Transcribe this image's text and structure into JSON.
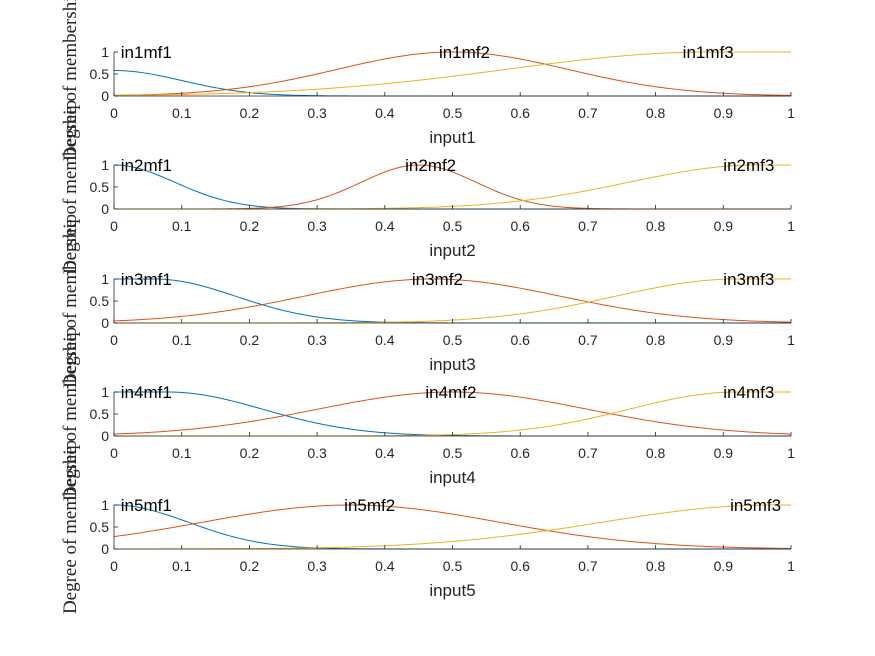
{
  "colors": {
    "mf1": "#0072BD",
    "mf2": "#D95319",
    "mf3": "#EDB120",
    "axis": "#262626"
  },
  "chart_data": [
    {
      "type": "line",
      "xlabel": "input1",
      "ylabel": "Degree of membership",
      "xlim": [
        0,
        1
      ],
      "ylim": [
        0,
        1
      ],
      "xticks": [
        "0",
        "0.1",
        "0.2",
        "0.3",
        "0.4",
        "0.5",
        "0.6",
        "0.7",
        "0.8",
        "0.9",
        "1"
      ],
      "yticks": [
        "0",
        "0.5",
        "1"
      ],
      "series": [
        {
          "name": "in1mf1",
          "shape": "gauss",
          "center": 0.0,
          "sigma": 0.1,
          "amp": 0.58,
          "label_x": 0.01
        },
        {
          "name": "in1mf2",
          "shape": "gauss",
          "center": 0.5,
          "sigma": 0.17,
          "amp": 1.0,
          "label_x": 0.48
        },
        {
          "name": "in1mf3",
          "shape": "gauss",
          "center": 0.88,
          "sigma": 0.3,
          "amp": 1.0,
          "flat_right": true,
          "label_x": 0.84
        }
      ]
    },
    {
      "type": "line",
      "xlabel": "input2",
      "ylabel": "Degree of membership",
      "xlim": [
        0,
        1
      ],
      "ylim": [
        0,
        1
      ],
      "xticks": [
        "0",
        "0.1",
        "0.2",
        "0.3",
        "0.4",
        "0.5",
        "0.6",
        "0.7",
        "0.8",
        "0.9",
        "1"
      ],
      "yticks": [
        "0",
        "0.5",
        "1"
      ],
      "series": [
        {
          "name": "in2mf1",
          "shape": "gauss",
          "center": 0.0,
          "sigma": 0.09,
          "amp": 1.0,
          "label_x": 0.01
        },
        {
          "name": "in2mf2",
          "shape": "gauss",
          "center": 0.45,
          "sigma": 0.085,
          "amp": 1.0,
          "label_x": 0.43
        },
        {
          "name": "in2mf3",
          "shape": "gauss",
          "center": 0.95,
          "sigma": 0.19,
          "amp": 1.0,
          "flat_right": true,
          "label_x": 0.9
        }
      ]
    },
    {
      "type": "line",
      "xlabel": "input3",
      "ylabel": "Degree of membership",
      "xlim": [
        0,
        1
      ],
      "ylim": [
        0,
        1
      ],
      "xticks": [
        "0",
        "0.1",
        "0.2",
        "0.3",
        "0.4",
        "0.5",
        "0.6",
        "0.7",
        "0.8",
        "0.9",
        "1"
      ],
      "yticks": [
        "0",
        "0.5",
        "1"
      ],
      "series": [
        {
          "name": "in3mf1",
          "shape": "gauss",
          "center": 0.06,
          "sigma": 0.12,
          "amp": 1.0,
          "flat_left": true,
          "label_x": 0.01
        },
        {
          "name": "in3mf2",
          "shape": "gauss",
          "center": 0.47,
          "sigma": 0.19,
          "amp": 1.0,
          "label_x": 0.44
        },
        {
          "name": "in3mf3",
          "shape": "gauss",
          "center": 0.92,
          "sigma": 0.18,
          "amp": 1.0,
          "flat_right": true,
          "label_x": 0.9
        }
      ]
    },
    {
      "type": "line",
      "xlabel": "input4",
      "ylabel": "Degree of membership",
      "xlim": [
        0,
        1
      ],
      "ylim": [
        0,
        1
      ],
      "xticks": [
        "0",
        "0.1",
        "0.2",
        "0.3",
        "0.4",
        "0.5",
        "0.6",
        "0.7",
        "0.8",
        "0.9",
        "1"
      ],
      "yticks": [
        "0",
        "0.5",
        "1"
      ],
      "series": [
        {
          "name": "in4mf1",
          "shape": "gauss",
          "center": 0.08,
          "sigma": 0.14,
          "amp": 1.0,
          "flat_left": true,
          "label_x": 0.01
        },
        {
          "name": "in4mf2",
          "shape": "gauss",
          "center": 0.5,
          "sigma": 0.2,
          "amp": 1.0,
          "label_x": 0.46
        },
        {
          "name": "in4mf3",
          "shape": "gauss",
          "center": 0.92,
          "sigma": 0.16,
          "amp": 1.0,
          "flat_right": true,
          "label_x": 0.9
        }
      ]
    },
    {
      "type": "line",
      "xlabel": "input5",
      "ylabel": "Degree of membership",
      "xlim": [
        0,
        1
      ],
      "ylim": [
        0,
        1
      ],
      "xticks": [
        "0",
        "0.1",
        "0.2",
        "0.3",
        "0.4",
        "0.5",
        "0.6",
        "0.7",
        "0.8",
        "0.9",
        "1"
      ],
      "yticks": [
        "0",
        "0.5",
        "1"
      ],
      "series": [
        {
          "name": "in5mf1",
          "shape": "gauss",
          "center": 0.0,
          "sigma": 0.11,
          "amp": 1.0,
          "label_x": 0.01
        },
        {
          "name": "in5mf2",
          "shape": "gauss",
          "center": 0.35,
          "sigma": 0.22,
          "amp": 1.0,
          "label_x": 0.34
        },
        {
          "name": "in5mf3",
          "shape": "gauss",
          "center": 0.97,
          "sigma": 0.25,
          "amp": 1.0,
          "flat_right": true,
          "label_x": 0.91
        }
      ]
    }
  ]
}
